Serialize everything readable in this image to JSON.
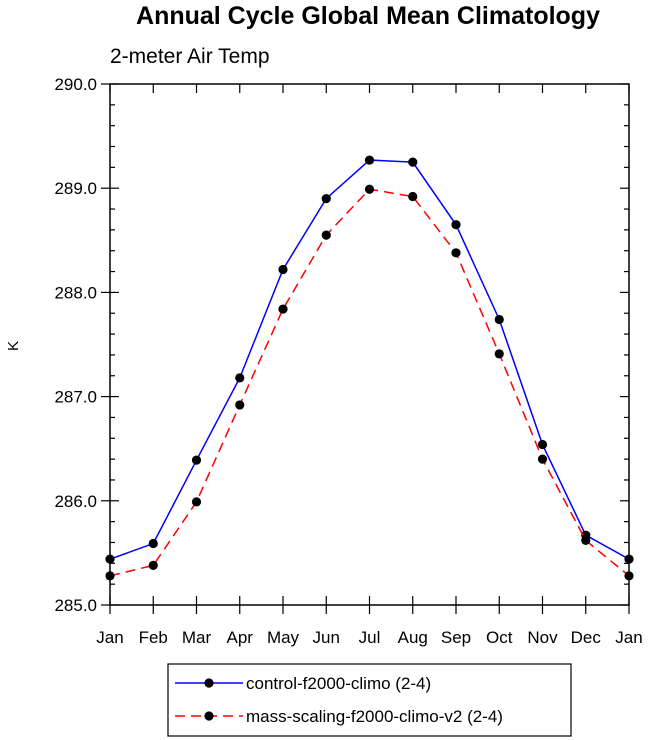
{
  "chart_data": {
    "type": "line",
    "title": "Annual Cycle Global Mean Climatology",
    "subtitle": "2-meter Air Temp",
    "xlabel": "",
    "ylabel": "K",
    "categories": [
      "Jan",
      "Feb",
      "Mar",
      "Apr",
      "May",
      "Jun",
      "Jul",
      "Aug",
      "Sep",
      "Oct",
      "Nov",
      "Dec",
      "Jan"
    ],
    "ylim": [
      285.0,
      290.0
    ],
    "yticks": [
      "285.0",
      "286.0",
      "287.0",
      "288.0",
      "289.0",
      "290.0"
    ],
    "grid": false,
    "legend_position": "bottom",
    "series": [
      {
        "name": "control-f2000-climo (2-4)",
        "color": "#0000ff",
        "dash": "solid",
        "values": [
          285.44,
          285.59,
          286.39,
          287.18,
          288.22,
          288.9,
          289.27,
          289.25,
          288.65,
          287.74,
          286.54,
          285.67,
          285.44
        ]
      },
      {
        "name": "mass-scaling-f2000-climo-v2 (2-4)",
        "color": "#ff0000",
        "dash": "dashed",
        "values": [
          285.28,
          285.38,
          285.99,
          286.92,
          287.84,
          288.55,
          288.99,
          288.92,
          288.38,
          287.41,
          286.4,
          285.62,
          285.28
        ]
      }
    ]
  }
}
